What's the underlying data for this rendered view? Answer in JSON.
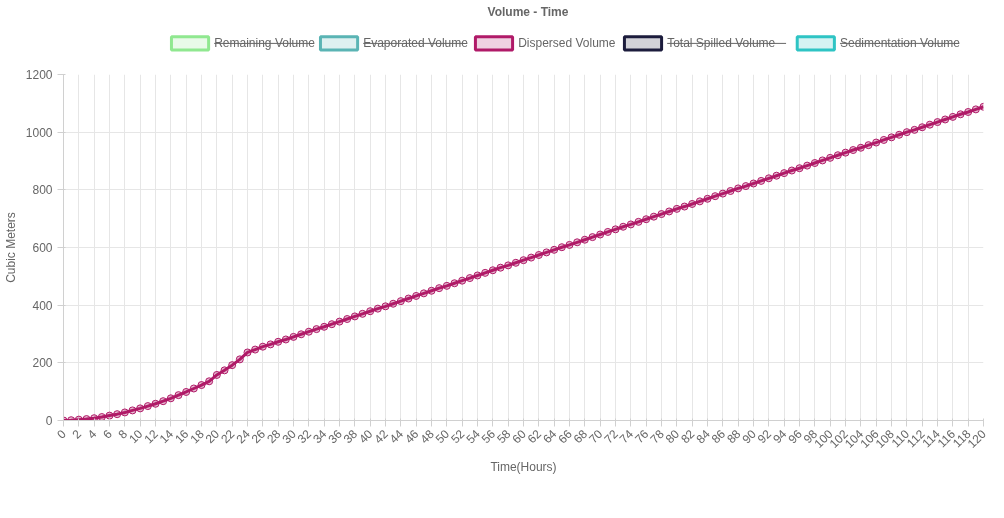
{
  "chart_data": {
    "type": "line",
    "title": "Volume - Time",
    "xlabel": "Time(Hours)",
    "ylabel": "Cubic Meters",
    "x": [
      0,
      1,
      2,
      3,
      4,
      5,
      6,
      7,
      8,
      9,
      10,
      11,
      12,
      13,
      14,
      15,
      16,
      17,
      18,
      19,
      20,
      21,
      22,
      23,
      24,
      25,
      26,
      27,
      28,
      29,
      30,
      31,
      32,
      33,
      34,
      35,
      36,
      37,
      38,
      39,
      40,
      41,
      42,
      43,
      44,
      45,
      46,
      47,
      48,
      49,
      50,
      51,
      52,
      53,
      54,
      55,
      56,
      57,
      58,
      59,
      60,
      61,
      62,
      63,
      64,
      65,
      66,
      67,
      68,
      69,
      70,
      71,
      72,
      73,
      74,
      75,
      76,
      77,
      78,
      79,
      80,
      81,
      82,
      83,
      84,
      85,
      86,
      87,
      88,
      89,
      90,
      91,
      92,
      93,
      94,
      95,
      96,
      97,
      98,
      99,
      100,
      101,
      102,
      103,
      104,
      105,
      106,
      107,
      108,
      109,
      110,
      111,
      112,
      113,
      114,
      115,
      116,
      117,
      118,
      119,
      120
    ],
    "series": [
      {
        "name": "Remaining Volume",
        "color": "#90e890",
        "values": [
          null,
          null,
          null,
          null,
          null,
          null,
          null,
          null,
          null,
          null,
          null,
          null,
          null,
          null,
          null,
          null,
          null,
          null,
          null,
          null,
          null,
          null,
          null,
          null,
          null,
          null,
          null,
          null,
          null,
          null,
          null,
          null,
          null,
          null,
          null,
          null,
          null,
          null,
          null,
          null,
          null,
          null,
          null,
          null,
          null,
          null,
          null,
          null,
          null,
          null,
          null,
          null,
          null,
          null,
          null,
          null,
          null,
          null,
          null,
          null,
          null,
          null,
          null,
          null,
          null,
          null,
          null,
          null,
          null,
          null,
          null,
          null,
          null,
          null,
          null,
          null,
          null,
          null,
          null,
          null,
          null,
          null,
          null,
          null,
          null,
          null,
          null,
          null,
          null,
          null,
          null,
          null,
          null,
          null,
          null,
          null,
          null,
          null,
          null,
          null,
          null,
          null,
          null,
          null,
          null,
          null,
          null,
          null,
          null,
          null,
          null,
          null,
          null,
          null,
          null,
          null,
          null,
          null,
          null,
          null,
          null
        ]
      },
      {
        "name": "Evaporated Volume",
        "color": "#5ab4b4",
        "values": [
          null,
          null,
          null,
          null,
          null,
          null,
          null,
          null,
          null,
          null,
          null,
          null,
          null,
          null,
          null,
          null,
          null,
          null,
          null,
          null,
          null,
          null,
          null,
          null,
          null,
          null,
          null,
          null,
          null,
          null,
          null,
          null,
          null,
          null,
          null,
          null,
          null,
          null,
          null,
          null,
          null,
          null,
          null,
          null,
          null,
          null,
          null,
          null,
          null,
          null,
          null,
          null,
          null,
          null,
          null,
          null,
          null,
          null,
          null,
          null,
          null,
          null,
          null,
          null,
          null,
          null,
          null,
          null,
          null,
          null,
          null,
          null,
          null,
          null,
          null,
          null,
          null,
          null,
          null,
          null,
          null,
          null,
          null,
          null,
          null,
          null,
          null,
          null,
          null,
          null,
          null,
          null,
          null,
          null,
          null,
          null,
          null,
          null,
          null,
          null,
          null,
          null,
          null,
          null,
          null,
          null,
          null,
          null,
          null,
          null,
          null,
          null,
          null,
          null,
          null,
          null,
          null,
          null,
          null,
          null,
          null
        ]
      },
      {
        "name": "Dispersed Volume",
        "color": "#b01a68",
        "values": [
          0,
          1,
          3,
          5,
          8,
          12,
          17,
          22,
          28,
          35,
          42,
          50,
          58,
          67,
          77,
          88,
          99,
          111,
          123,
          136,
          158,
          174,
          192,
          212,
          236,
          246,
          256,
          264,
          273,
          281,
          290,
          299,
          308,
          317,
          325,
          334,
          343,
          352,
          361,
          370,
          379,
          388,
          396,
          405,
          414,
          423,
          432,
          441,
          450,
          459,
          467,
          476,
          485,
          494,
          503,
          512,
          521,
          530,
          538,
          547,
          556,
          565,
          574,
          583,
          592,
          601,
          609,
          618,
          627,
          636,
          645,
          654,
          663,
          672,
          680,
          689,
          698,
          707,
          716,
          725,
          734,
          742,
          751,
          760,
          769,
          778,
          787,
          796,
          805,
          813,
          822,
          831,
          840,
          849,
          858,
          867,
          875,
          884,
          893,
          902,
          911,
          920,
          929,
          938,
          946,
          955,
          964,
          973,
          982,
          991,
          1000,
          1008,
          1017,
          1026,
          1035,
          1044,
          1053,
          1062,
          1070,
          1079,
          1088
        ]
      },
      {
        "name": "Total Spilled Volume",
        "color": "#1c1c3c",
        "values": [
          null,
          null,
          null,
          null,
          null,
          null,
          null,
          null,
          null,
          null,
          null,
          null,
          null,
          null,
          null,
          null,
          null,
          null,
          null,
          null,
          null,
          null,
          null,
          null,
          null,
          null,
          null,
          null,
          null,
          null,
          null,
          null,
          null,
          null,
          null,
          null,
          null,
          null,
          null,
          null,
          null,
          null,
          null,
          null,
          null,
          null,
          null,
          null,
          null,
          null,
          null,
          null,
          null,
          null,
          null,
          null,
          null,
          null,
          null,
          null,
          null,
          null,
          null,
          null,
          null,
          null,
          null,
          null,
          null,
          null,
          null,
          null,
          null,
          null,
          null,
          null,
          null,
          null,
          null,
          null,
          null,
          null,
          null,
          null,
          null,
          null,
          null,
          null,
          null,
          null,
          null,
          null,
          null,
          null,
          null,
          null,
          null,
          null,
          null,
          null,
          null,
          null,
          null,
          null,
          null,
          null,
          null,
          null,
          null,
          null,
          null,
          null,
          null,
          null,
          null,
          null,
          null,
          null,
          null,
          null,
          null
        ]
      },
      {
        "name": "Sedimentation Volume",
        "color": "#2ec4c4",
        "values": [
          null,
          null,
          null,
          null,
          null,
          null,
          null,
          null,
          null,
          null,
          null,
          null,
          null,
          null,
          null,
          null,
          null,
          null,
          null,
          null,
          null,
          null,
          null,
          null,
          null,
          null,
          null,
          null,
          null,
          null,
          null,
          null,
          null,
          null,
          null,
          null,
          null,
          null,
          null,
          null,
          null,
          null,
          null,
          null,
          null,
          null,
          null,
          null,
          null,
          null,
          null,
          null,
          null,
          null,
          null,
          null,
          null,
          null,
          null,
          null,
          null,
          null,
          null,
          null,
          null,
          null,
          null,
          null,
          null,
          null,
          null,
          null,
          null,
          null,
          null,
          null,
          null,
          null,
          null,
          null,
          null,
          null,
          null,
          null,
          null,
          null,
          null,
          null,
          null,
          null,
          null,
          null,
          null,
          null,
          null,
          null,
          null,
          null,
          null,
          null,
          null,
          null,
          null,
          null,
          null,
          null,
          null,
          null,
          null,
          null,
          null,
          null,
          null,
          null,
          null,
          null,
          null,
          null,
          null,
          null,
          null
        ]
      }
    ],
    "xlim": [
      0,
      120
    ],
    "xticks": [
      0,
      2,
      4,
      6,
      8,
      10,
      12,
      14,
      16,
      18,
      20,
      22,
      24,
      26,
      28,
      30,
      32,
      34,
      36,
      38,
      40,
      42,
      44,
      46,
      48,
      50,
      52,
      54,
      56,
      58,
      60,
      62,
      64,
      66,
      68,
      70,
      72,
      74,
      76,
      78,
      80,
      82,
      84,
      86,
      88,
      90,
      92,
      94,
      96,
      98,
      100,
      102,
      104,
      106,
      108,
      110,
      112,
      114,
      116,
      118,
      120
    ],
    "ylim": [
      0,
      1200
    ],
    "yticks": [
      0,
      200,
      400,
      600,
      800,
      1000,
      1200
    ],
    "grid": true,
    "legend": "top",
    "marker": "circle",
    "line_style": "solid"
  }
}
